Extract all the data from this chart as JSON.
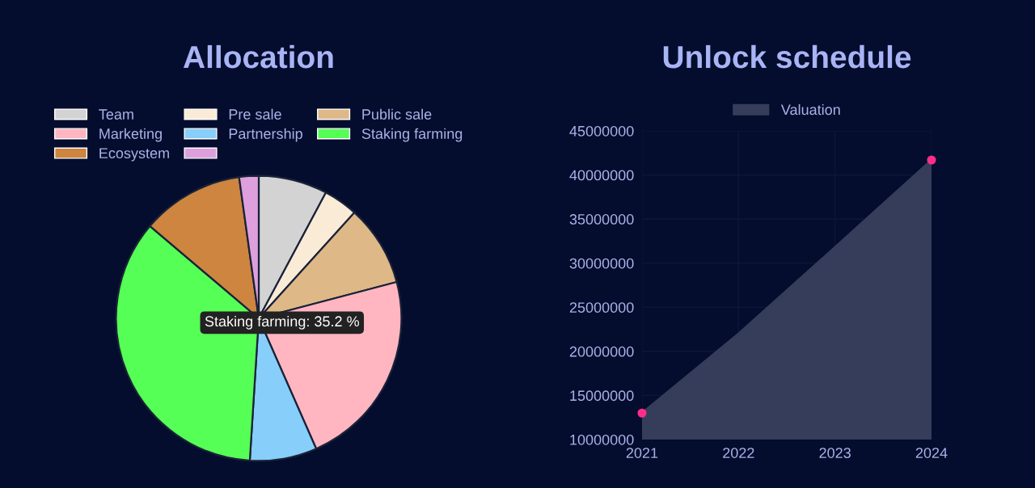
{
  "chart_data": [
    {
      "type": "pie",
      "title": "Allocation",
      "categories": [
        "Team",
        "Pre sale",
        "Public sale",
        "Marketing",
        "Partnership",
        "Staking farming",
        "Ecosystem",
        null
      ],
      "values": [
        7.8,
        3.9,
        9.2,
        22.5,
        7.6,
        35.2,
        11.6,
        2.2
      ],
      "colors": [
        "#d3d3d3",
        "#faebd7",
        "#deb887",
        "#ffb6c1",
        "#87cefa",
        "#55ff55",
        "#cd853f",
        "#dda0dd"
      ],
      "legend": "top",
      "annotations": [
        "Staking farming: 35.2 %"
      ]
    },
    {
      "type": "area",
      "title": "Unlock schedule",
      "x": [
        2021,
        2022,
        2023,
        2024
      ],
      "series": [
        {
          "name": "Valuation",
          "type": "area",
          "color": "#363d5a",
          "values": [
            13000000,
            22000000,
            31800000,
            41700000
          ]
        },
        {
          "type": "scatter",
          "color": "#ff2d8a",
          "marker": "circle",
          "x": [
            2021,
            2024
          ],
          "values": [
            13000000,
            41700000
          ]
        }
      ],
      "xlim": [
        2021,
        2024
      ],
      "xticks": [
        2021,
        2022,
        2023,
        2024
      ],
      "ylim": [
        10000000,
        45000000
      ],
      "yticks": [
        10000000,
        15000000,
        20000000,
        25000000,
        30000000,
        35000000,
        40000000,
        45000000
      ],
      "grid": true,
      "legend": "top"
    }
  ]
}
